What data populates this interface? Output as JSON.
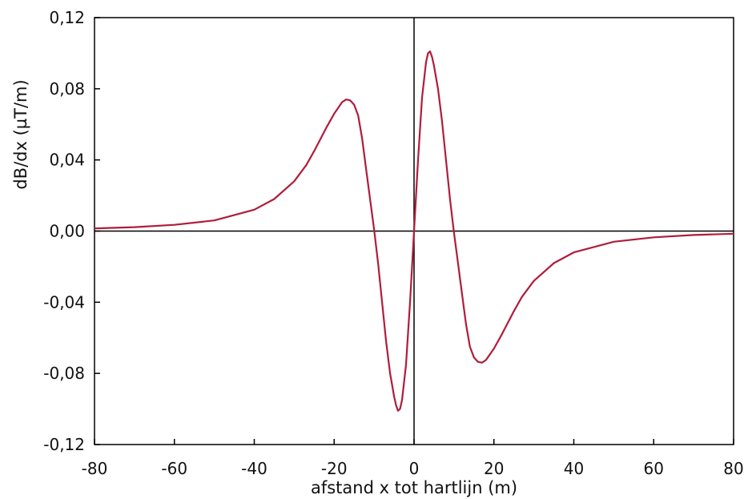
{
  "chart_data": {
    "type": "line",
    "title": "",
    "xlabel": "afstand x tot hartlijn (m)",
    "ylabel": "dB/dx (µT/m)",
    "xlim": [
      -80,
      80
    ],
    "ylim": [
      -0.12,
      0.12
    ],
    "x_ticks": [
      -80,
      -60,
      -40,
      -20,
      0,
      20,
      40,
      60,
      80
    ],
    "x_tick_labels": [
      "-80",
      "-60",
      "-40",
      "-20",
      "0",
      "20",
      "40",
      "60",
      "80"
    ],
    "y_ticks": [
      0.12,
      0.08,
      0.04,
      0.0,
      -0.04,
      -0.08,
      -0.12
    ],
    "y_tick_labels": [
      "0,12",
      "0,08",
      "0,04",
      "0,00",
      "-0,04",
      "-0,08",
      "-0,12"
    ],
    "grid": false,
    "legend": "none",
    "series": [
      {
        "color": "#b01c3c",
        "x": [
          -80,
          -70,
          -60,
          -50,
          -40,
          -35,
          -30,
          -27,
          -25,
          -22,
          -20,
          -18,
          -17,
          -16,
          -15,
          -14,
          -13,
          -12,
          -11,
          -10,
          -9,
          -8,
          -7,
          -6,
          -5,
          -4.5,
          -4,
          -3.5,
          -3,
          -2,
          -1,
          0,
          1,
          2,
          3,
          3.5,
          4,
          4.5,
          5,
          6,
          7,
          8,
          9,
          10,
          11,
          12,
          13,
          14,
          15,
          16,
          17,
          18,
          20,
          22,
          25,
          27,
          30,
          35,
          40,
          50,
          60,
          70,
          80
        ],
        "y": [
          0.0015,
          0.0022,
          0.0035,
          0.006,
          0.012,
          0.018,
          0.028,
          0.037,
          0.045,
          0.058,
          0.066,
          0.0725,
          0.074,
          0.0735,
          0.071,
          0.065,
          0.052,
          0.035,
          0.018,
          0.001,
          -0.018,
          -0.04,
          -0.062,
          -0.08,
          -0.093,
          -0.098,
          -0.101,
          -0.1,
          -0.095,
          -0.075,
          -0.04,
          0.0,
          0.04,
          0.075,
          0.095,
          0.1,
          0.101,
          0.098,
          0.093,
          0.08,
          0.062,
          0.04,
          0.018,
          -0.001,
          -0.018,
          -0.035,
          -0.052,
          -0.065,
          -0.071,
          -0.0735,
          -0.074,
          -0.0725,
          -0.066,
          -0.058,
          -0.045,
          -0.037,
          -0.028,
          -0.018,
          -0.012,
          -0.006,
          -0.0035,
          -0.0022,
          -0.0015
        ]
      }
    ]
  }
}
